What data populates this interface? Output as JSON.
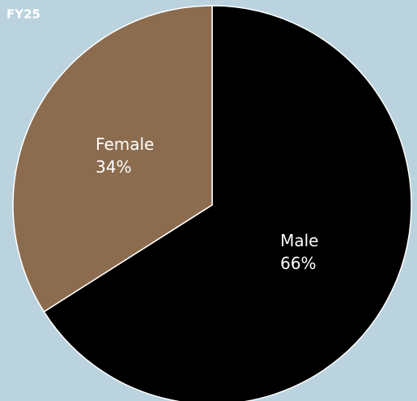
{
  "chart_data": {
    "type": "pie",
    "title": "FY25",
    "categories": [
      "Male",
      "Female"
    ],
    "values": [
      66,
      34
    ],
    "value_labels": [
      "66%",
      "34%"
    ],
    "colors": [
      "#000000",
      "#8b6c4f"
    ]
  }
}
